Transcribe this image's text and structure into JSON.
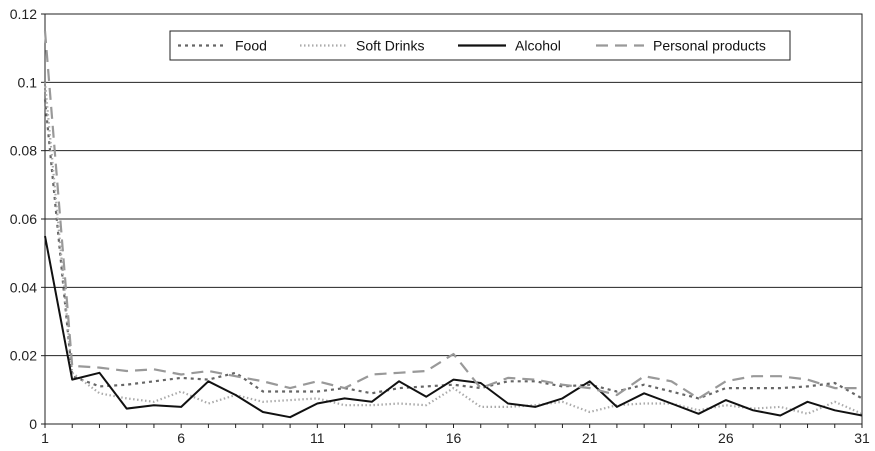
{
  "chart_data": {
    "type": "line",
    "x": [
      1,
      2,
      3,
      4,
      5,
      6,
      7,
      8,
      9,
      10,
      11,
      12,
      13,
      14,
      15,
      16,
      17,
      18,
      19,
      20,
      21,
      22,
      23,
      24,
      25,
      26,
      27,
      28,
      29,
      30,
      31
    ],
    "xticks": [
      1,
      6,
      11,
      16,
      21,
      26,
      31
    ],
    "ylim": [
      0,
      0.12
    ],
    "yticks": [
      0,
      0.02,
      0.04,
      0.06,
      0.08,
      0.1,
      0.12
    ],
    "ytick_labels": [
      "0",
      "0.02",
      "0.04",
      "0.06",
      "0.08",
      "0.1",
      "0.12"
    ],
    "grid": "horizontal",
    "legend_position": "top",
    "series": [
      {
        "name": "Food",
        "color": "#666666",
        "dash": "3,4",
        "values": [
          0.095,
          0.014,
          0.011,
          0.0115,
          0.0125,
          0.0135,
          0.013,
          0.015,
          0.0095,
          0.0095,
          0.0095,
          0.0105,
          0.009,
          0.0105,
          0.011,
          0.0115,
          0.0105,
          0.0125,
          0.0125,
          0.011,
          0.0115,
          0.0095,
          0.0115,
          0.0095,
          0.0075,
          0.0105,
          0.0105,
          0.0105,
          0.011,
          0.012,
          0.0075
        ]
      },
      {
        "name": "Soft Drinks",
        "color": "#aaaaaa",
        "dash": "1.5,2.5",
        "values": [
          0.1,
          0.015,
          0.009,
          0.0075,
          0.0065,
          0.0095,
          0.006,
          0.0085,
          0.0065,
          0.007,
          0.0075,
          0.0055,
          0.0055,
          0.006,
          0.0055,
          0.0105,
          0.005,
          0.005,
          0.0055,
          0.0065,
          0.0035,
          0.0055,
          0.006,
          0.006,
          0.004,
          0.0055,
          0.0045,
          0.005,
          0.003,
          0.0065,
          0.003
        ]
      },
      {
        "name": "Alcohol",
        "color": "#111111",
        "dash": "",
        "values": [
          0.055,
          0.013,
          0.015,
          0.0045,
          0.0055,
          0.005,
          0.0125,
          0.0085,
          0.0035,
          0.002,
          0.006,
          0.0075,
          0.0065,
          0.0125,
          0.008,
          0.013,
          0.012,
          0.006,
          0.005,
          0.0075,
          0.0125,
          0.005,
          0.009,
          0.006,
          0.003,
          0.007,
          0.004,
          0.0025,
          0.0065,
          0.004,
          0.0025
        ]
      },
      {
        "name": "Personal products",
        "color": "#999999",
        "dash": "12,7",
        "values": [
          0.115,
          0.017,
          0.0165,
          0.0155,
          0.016,
          0.0145,
          0.0155,
          0.014,
          0.0125,
          0.0105,
          0.0125,
          0.0105,
          0.0145,
          0.015,
          0.0155,
          0.0205,
          0.0105,
          0.0135,
          0.013,
          0.0115,
          0.0105,
          0.0085,
          0.014,
          0.0125,
          0.0075,
          0.0125,
          0.014,
          0.014,
          0.013,
          0.0105,
          0.0105
        ]
      }
    ]
  }
}
